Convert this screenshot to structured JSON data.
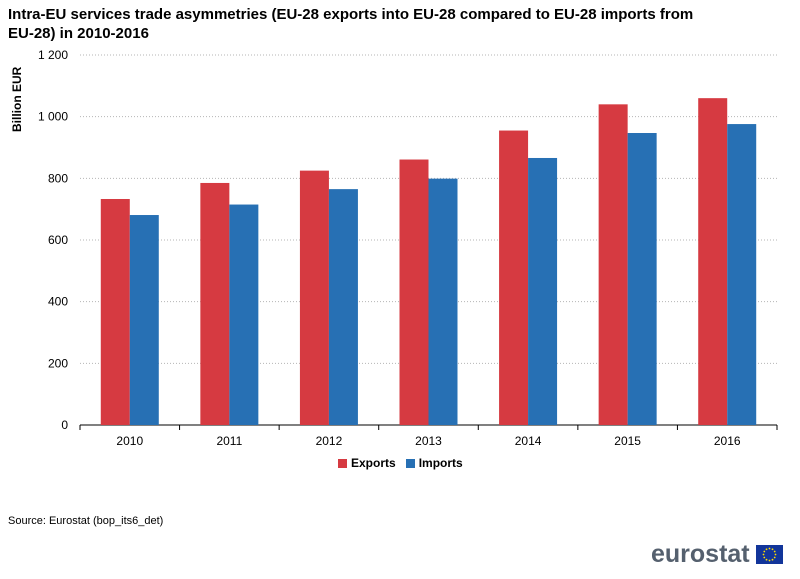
{
  "chart_data": {
    "type": "bar",
    "title": "Intra-EU services trade asymmetries (EU-28 exports into EU-28 compared to EU-28 imports from EU-28) in 2010-2016",
    "xlabel": "",
    "ylabel": "Billion EUR",
    "ylim": [
      0,
      1200
    ],
    "yticks": [
      0,
      200,
      400,
      600,
      800,
      1000,
      1200
    ],
    "ytick_labels": [
      "0",
      "200",
      "400",
      "600",
      "800",
      "1 000",
      "1 200"
    ],
    "grid": true,
    "legend_position": "bottom",
    "categories": [
      "2010",
      "2011",
      "2012",
      "2013",
      "2014",
      "2015",
      "2016"
    ],
    "series": [
      {
        "name": "Exports",
        "color": "#d63a41",
        "values": [
          733,
          785,
          825,
          861,
          955,
          1040,
          1060
        ]
      },
      {
        "name": "Imports",
        "color": "#2770b4",
        "values": [
          681,
          715,
          765,
          799,
          866,
          947,
          976
        ]
      }
    ]
  },
  "source_text": "Source: Eurostat (bop_its6_det)",
  "logo": {
    "text": "eurostat",
    "flag_color": "#12359a",
    "star_color": "#ffdd00"
  }
}
